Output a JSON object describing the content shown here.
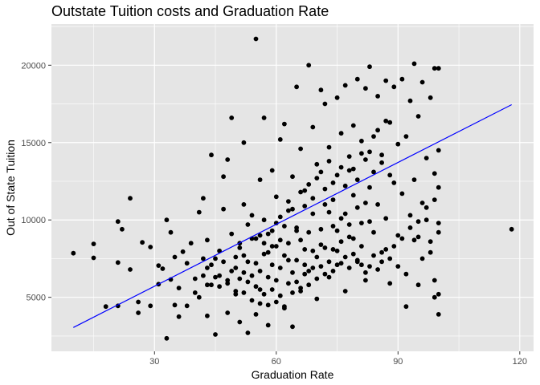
{
  "chart_data": {
    "type": "scatter",
    "title": "Outstate Tuition costs and Graduation Rate",
    "xlabel": "Graduation Rate",
    "ylabel": "Out of State Tuition",
    "xlim": [
      4.6,
      123.4
    ],
    "ylim": [
      1510,
      22660
    ],
    "x_ticks": [
      30,
      60,
      90,
      120
    ],
    "x_tick_labels": [
      "30",
      "60",
      "90",
      "120"
    ],
    "y_ticks": [
      5000,
      10000,
      15000,
      20000
    ],
    "y_tick_labels": [
      "5000",
      "10000",
      "15000",
      "20000"
    ],
    "grid": true,
    "background": "#e5e5e5",
    "grid_color": "#ffffff",
    "point_color": "#000000",
    "fit_line": {
      "color": "#0000ff",
      "x": [
        10,
        118
      ],
      "y": [
        3050,
        17450
      ]
    },
    "points": [
      [
        10,
        7850
      ],
      [
        15,
        8450
      ],
      [
        15,
        7550
      ],
      [
        18,
        4400
      ],
      [
        21,
        9900
      ],
      [
        21,
        7250
      ],
      [
        21,
        4450
      ],
      [
        22,
        9400
      ],
      [
        24,
        11400
      ],
      [
        24,
        6800
      ],
      [
        26,
        4700
      ],
      [
        26,
        4000
      ],
      [
        27,
        8550
      ],
      [
        29,
        8250
      ],
      [
        29,
        4450
      ],
      [
        31,
        7050
      ],
      [
        31,
        5850
      ],
      [
        32,
        6850
      ],
      [
        33,
        10000
      ],
      [
        33,
        2350
      ],
      [
        34,
        9200
      ],
      [
        34,
        6150
      ],
      [
        35,
        7600
      ],
      [
        35,
        4500
      ],
      [
        36,
        3750
      ],
      [
        36,
        5600
      ],
      [
        37,
        7950
      ],
      [
        38,
        7200
      ],
      [
        38,
        4450
      ],
      [
        39,
        8500
      ],
      [
        40,
        6200
      ],
      [
        40,
        5300
      ],
      [
        41,
        5000
      ],
      [
        41,
        10500
      ],
      [
        42,
        7500
      ],
      [
        42,
        11400
      ],
      [
        43,
        8700
      ],
      [
        43,
        6900
      ],
      [
        43,
        3800
      ],
      [
        44,
        14200
      ],
      [
        44,
        5800
      ],
      [
        45,
        7500
      ],
      [
        45,
        2600
      ],
      [
        46,
        8000
      ],
      [
        46,
        6400
      ],
      [
        47,
        10700
      ],
      [
        47,
        12800
      ],
      [
        48,
        13900
      ],
      [
        48,
        6100
      ],
      [
        48,
        4000
      ],
      [
        49,
        9100
      ],
      [
        49,
        16600
      ],
      [
        50,
        6900
      ],
      [
        50,
        5200
      ],
      [
        51,
        8500
      ],
      [
        51,
        3400
      ],
      [
        52,
        15000
      ],
      [
        52,
        11000
      ],
      [
        52,
        7700
      ],
      [
        53,
        9700
      ],
      [
        53,
        2700
      ],
      [
        54,
        10300
      ],
      [
        54,
        6400
      ],
      [
        55,
        21700
      ],
      [
        55,
        8800
      ],
      [
        55,
        3900
      ],
      [
        56,
        12600
      ],
      [
        56,
        5500
      ],
      [
        57,
        10000
      ],
      [
        57,
        16600
      ],
      [
        58,
        7900
      ],
      [
        58,
        3200
      ],
      [
        59,
        9300
      ],
      [
        59,
        13200
      ],
      [
        60,
        11500
      ],
      [
        60,
        6100
      ],
      [
        61,
        15200
      ],
      [
        61,
        8700
      ],
      [
        62,
        4400
      ],
      [
        62,
        16200
      ],
      [
        63,
        10600
      ],
      [
        63,
        7400
      ],
      [
        64,
        3100
      ],
      [
        64,
        12800
      ],
      [
        65,
        18600
      ],
      [
        65,
        9500
      ],
      [
        66,
        5600
      ],
      [
        66,
        14600
      ],
      [
        67,
        8100
      ],
      [
        67,
        11900
      ],
      [
        68,
        20000
      ],
      [
        68,
        6700
      ],
      [
        69,
        10400
      ],
      [
        69,
        16000
      ],
      [
        70,
        4900
      ],
      [
        70,
        13600
      ],
      [
        71,
        18400
      ],
      [
        71,
        8400
      ],
      [
        72,
        17500
      ],
      [
        72,
        11000
      ],
      [
        73,
        6300
      ],
      [
        73,
        14700
      ],
      [
        74,
        9600
      ],
      [
        74,
        12400
      ],
      [
        75,
        17900
      ],
      [
        75,
        7100
      ],
      [
        76,
        15600
      ],
      [
        76,
        10100
      ],
      [
        77,
        18700
      ],
      [
        77,
        5400
      ],
      [
        78,
        13200
      ],
      [
        78,
        8900
      ],
      [
        79,
        11600
      ],
      [
        79,
        16100
      ],
      [
        80,
        19100
      ],
      [
        80,
        7300
      ],
      [
        81,
        9800
      ],
      [
        81,
        14300
      ],
      [
        82,
        18500
      ],
      [
        82,
        6100
      ],
      [
        83,
        12100
      ],
      [
        83,
        19900
      ],
      [
        84,
        9200
      ],
      [
        84,
        15400
      ],
      [
        85,
        11000
      ],
      [
        85,
        18000
      ],
      [
        86,
        7900
      ],
      [
        86,
        13700
      ],
      [
        87,
        19000
      ],
      [
        87,
        10100
      ],
      [
        88,
        16300
      ],
      [
        88,
        5900
      ],
      [
        89,
        12400
      ],
      [
        89,
        18600
      ],
      [
        90,
        9000
      ],
      [
        90,
        14900
      ],
      [
        91,
        11700
      ],
      [
        91,
        19100
      ],
      [
        92,
        4400
      ],
      [
        92,
        15400
      ],
      [
        93,
        10300
      ],
      [
        93,
        17700
      ],
      [
        94,
        12600
      ],
      [
        94,
        20100
      ],
      [
        95,
        8900
      ],
      [
        95,
        16700
      ],
      [
        96,
        11100
      ],
      [
        96,
        18900
      ],
      [
        97,
        14000
      ],
      [
        97,
        10000
      ],
      [
        98,
        17900
      ],
      [
        98,
        7900
      ],
      [
        99,
        13000
      ],
      [
        99,
        19800
      ],
      [
        100,
        19800
      ],
      [
        100,
        14500
      ],
      [
        100,
        12100
      ],
      [
        100,
        9800
      ],
      [
        100,
        9200
      ],
      [
        100,
        5200
      ],
      [
        100,
        3900
      ],
      [
        99,
        5000
      ],
      [
        118,
        9400
      ],
      [
        56,
        9000
      ],
      [
        57,
        8500
      ],
      [
        58,
        9100
      ],
      [
        59,
        8300
      ],
      [
        60,
        9800
      ],
      [
        61,
        10200
      ],
      [
        62,
        9600
      ],
      [
        63,
        11200
      ],
      [
        64,
        10700
      ],
      [
        65,
        9300
      ],
      [
        66,
        11800
      ],
      [
        67,
        10900
      ],
      [
        68,
        12300
      ],
      [
        69,
        11400
      ],
      [
        70,
        12700
      ],
      [
        71,
        13100
      ],
      [
        72,
        12000
      ],
      [
        73,
        13800
      ],
      [
        74,
        11300
      ],
      [
        75,
        12900
      ],
      [
        76,
        13400
      ],
      [
        77,
        12200
      ],
      [
        78,
        14100
      ],
      [
        79,
        13300
      ],
      [
        80,
        12600
      ],
      [
        81,
        15100
      ],
      [
        82,
        13900
      ],
      [
        83,
        14400
      ],
      [
        84,
        13100
      ],
      [
        85,
        15800
      ],
      [
        86,
        14200
      ],
      [
        87,
        16400
      ],
      [
        88,
        12900
      ],
      [
        50,
        7600
      ],
      [
        51,
        8200
      ],
      [
        52,
        6600
      ],
      [
        53,
        7300
      ],
      [
        54,
        8800
      ],
      [
        55,
        7200
      ],
      [
        56,
        6700
      ],
      [
        57,
        7800
      ],
      [
        58,
        6300
      ],
      [
        59,
        7100
      ],
      [
        60,
        8300
      ],
      [
        61,
        6900
      ],
      [
        62,
        7700
      ],
      [
        63,
        8500
      ],
      [
        64,
        6600
      ],
      [
        65,
        7400
      ],
      [
        66,
        8700
      ],
      [
        67,
        7100
      ],
      [
        68,
        9200
      ],
      [
        69,
        8000
      ],
      [
        70,
        7600
      ],
      [
        71,
        9400
      ],
      [
        72,
        8200
      ],
      [
        73,
        10500
      ],
      [
        74,
        8100
      ],
      [
        75,
        9300
      ],
      [
        76,
        8600
      ],
      [
        77,
        10400
      ],
      [
        78,
        9700
      ],
      [
        79,
        8800
      ],
      [
        80,
        10800
      ],
      [
        81,
        8300
      ],
      [
        82,
        11100
      ],
      [
        83,
        9900
      ],
      [
        42,
        6400
      ],
      [
        43,
        5800
      ],
      [
        44,
        7100
      ],
      [
        45,
        6300
      ],
      [
        46,
        5700
      ],
      [
        47,
        7300
      ],
      [
        48,
        5900
      ],
      [
        49,
        6700
      ],
      [
        50,
        5400
      ],
      [
        51,
        6200
      ],
      [
        52,
        5300
      ],
      [
        53,
        6000
      ],
      [
        54,
        4800
      ],
      [
        55,
        5700
      ],
      [
        56,
        4600
      ],
      [
        57,
        5200
      ],
      [
        58,
        4500
      ],
      [
        59,
        5500
      ],
      [
        60,
        4700
      ],
      [
        61,
        5100
      ],
      [
        62,
        4300
      ],
      [
        63,
        5900
      ],
      [
        64,
        5300
      ],
      [
        65,
        6000
      ],
      [
        66,
        5400
      ],
      [
        67,
        6500
      ],
      [
        68,
        5800
      ],
      [
        69,
        6900
      ],
      [
        70,
        6200
      ],
      [
        71,
        7000
      ],
      [
        72,
        6500
      ],
      [
        73,
        7300
      ],
      [
        74,
        6700
      ],
      [
        75,
        8000
      ],
      [
        76,
        7200
      ],
      [
        77,
        7600
      ],
      [
        78,
        6900
      ],
      [
        79,
        7800
      ],
      [
        80,
        7400
      ],
      [
        81,
        7100
      ],
      [
        82,
        6600
      ],
      [
        83,
        7000
      ],
      [
        84,
        7700
      ],
      [
        85,
        6800
      ],
      [
        86,
        7300
      ],
      [
        87,
        8100
      ],
      [
        88,
        7500
      ],
      [
        89,
        8300
      ],
      [
        90,
        7000
      ],
      [
        91,
        8800
      ],
      [
        92,
        6500
      ],
      [
        93,
        9500
      ],
      [
        94,
        8700
      ],
      [
        95,
        9900
      ],
      [
        96,
        7500
      ],
      [
        97,
        10800
      ],
      [
        98,
        8600
      ],
      [
        99,
        11300
      ],
      [
        99,
        6100
      ],
      [
        95,
        5800
      ]
    ]
  }
}
